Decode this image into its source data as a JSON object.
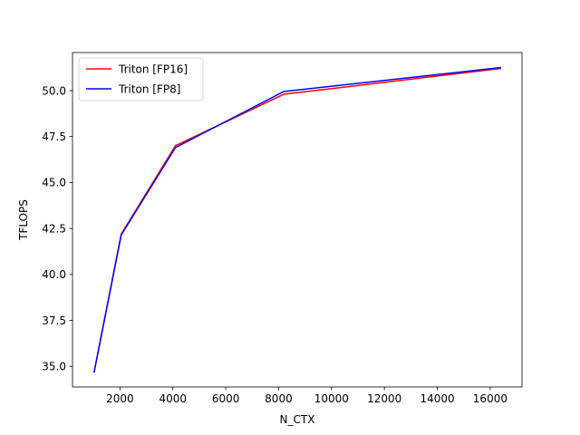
{
  "chart_data": {
    "type": "line",
    "title": "",
    "xlabel": "N_CTX",
    "ylabel": "TFLOPS",
    "x": [
      1024,
      2048,
      4096,
      8192,
      16384
    ],
    "series": [
      {
        "name": "Triton [FP16]",
        "color": "#ff0000",
        "values": [
          34.7,
          42.2,
          47.0,
          49.8,
          51.2
        ]
      },
      {
        "name": "Triton [FP8]",
        "color": "#0000ff",
        "values": [
          34.7,
          42.15,
          46.9,
          49.95,
          51.25
        ]
      }
    ],
    "xlim": [
      204.8,
      17203.2
    ],
    "ylim": [
      33.88,
      52.07
    ],
    "xticks": [
      2000,
      4000,
      6000,
      8000,
      10000,
      12000,
      14000,
      16000
    ],
    "yticks": [
      35.0,
      37.5,
      40.0,
      42.5,
      45.0,
      47.5,
      50.0
    ],
    "xtick_labels": [
      "2000",
      "4000",
      "6000",
      "8000",
      "10000",
      "12000",
      "14000",
      "16000"
    ],
    "ytick_labels": [
      "35.0",
      "37.5",
      "40.0",
      "42.5",
      "45.0",
      "47.5",
      "50.0"
    ],
    "grid": false,
    "legend": "upper-left"
  }
}
